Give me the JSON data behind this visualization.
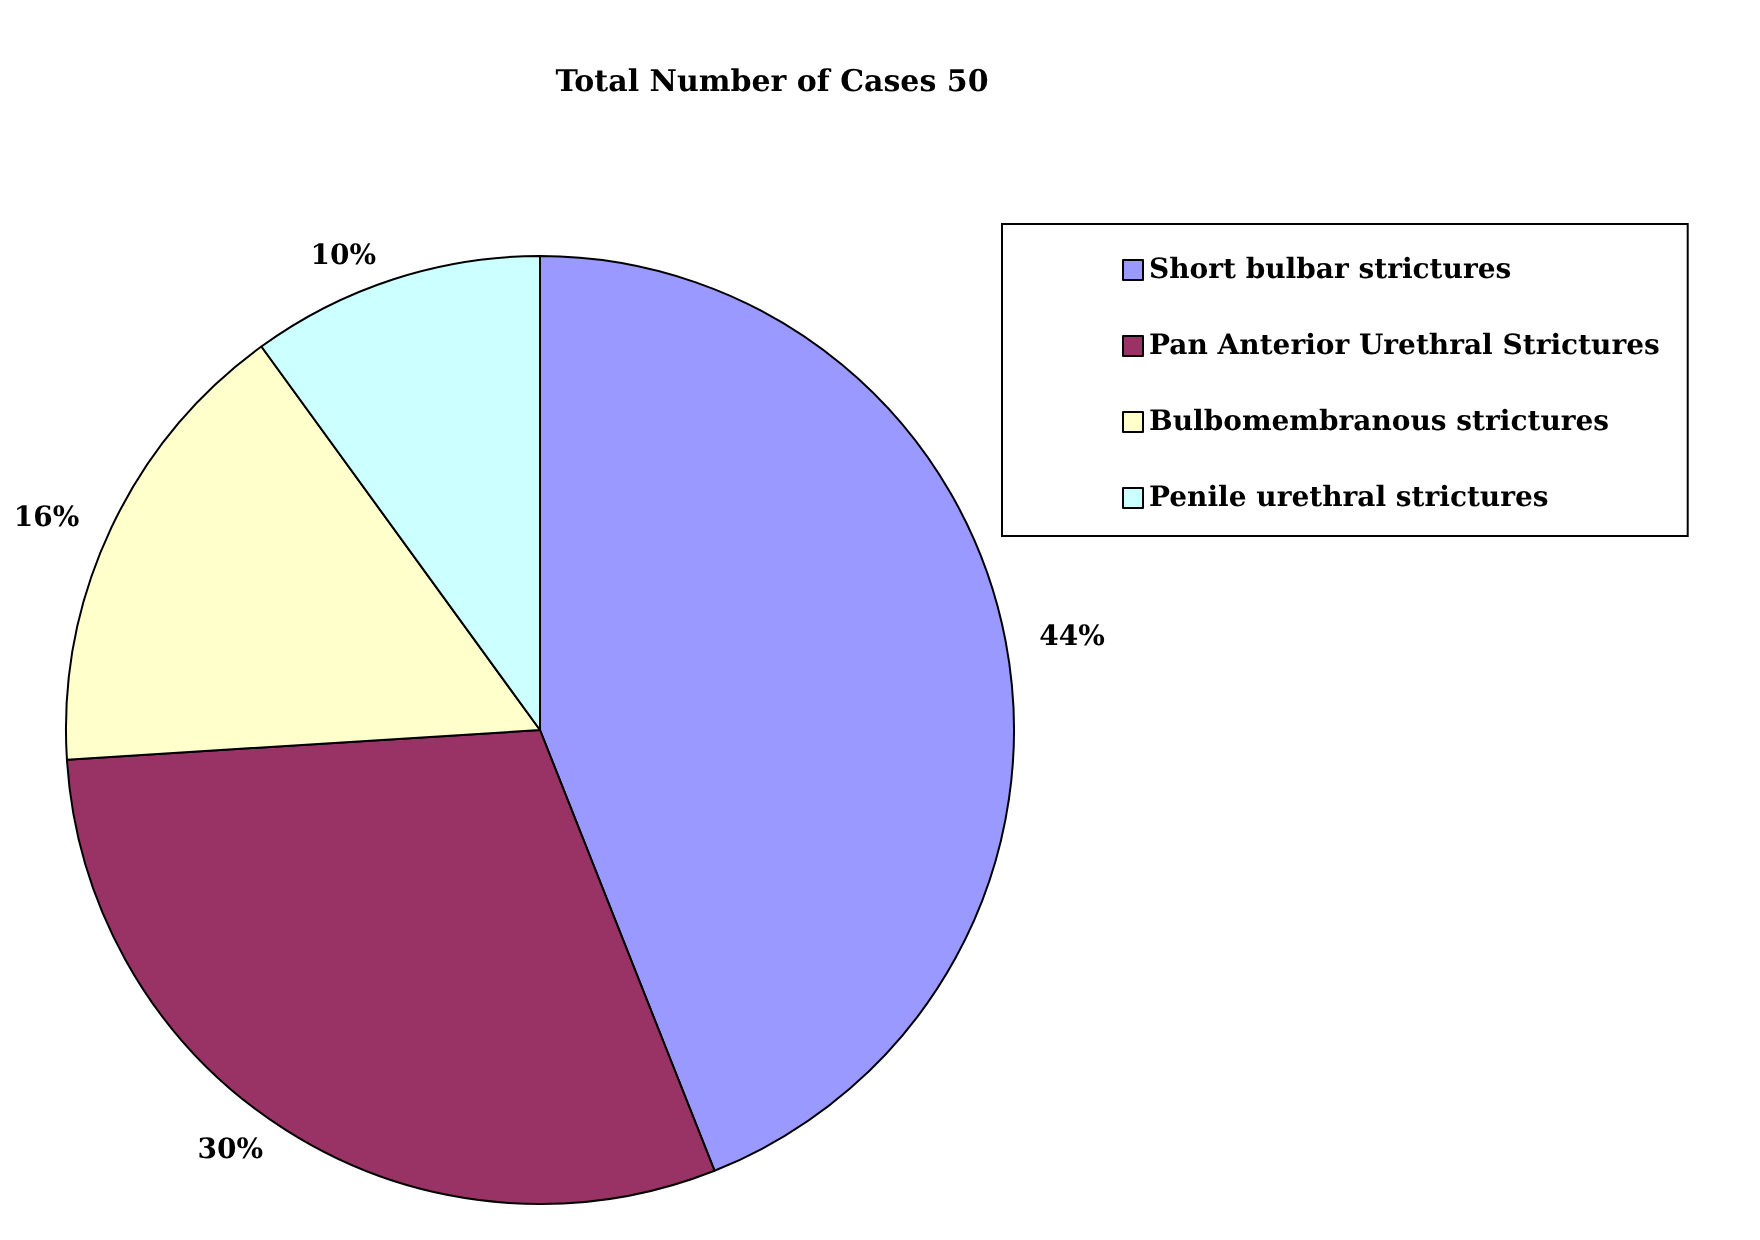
{
  "chart_data": {
    "type": "pie",
    "title": "Total Number of Cases 50",
    "categories": [
      "Short bulbar strictures",
      "Pan Anterior Urethral Strictures",
      "Bulbomembranous strictures",
      "Penile urethral strictures"
    ],
    "values": [
      44,
      30,
      16,
      10
    ],
    "value_labels": [
      "44%",
      "30%",
      "16%",
      "10%"
    ],
    "colors": [
      "#9999ff",
      "#993366",
      "#ffffcc",
      "#ccffff"
    ],
    "legend": "top right"
  }
}
